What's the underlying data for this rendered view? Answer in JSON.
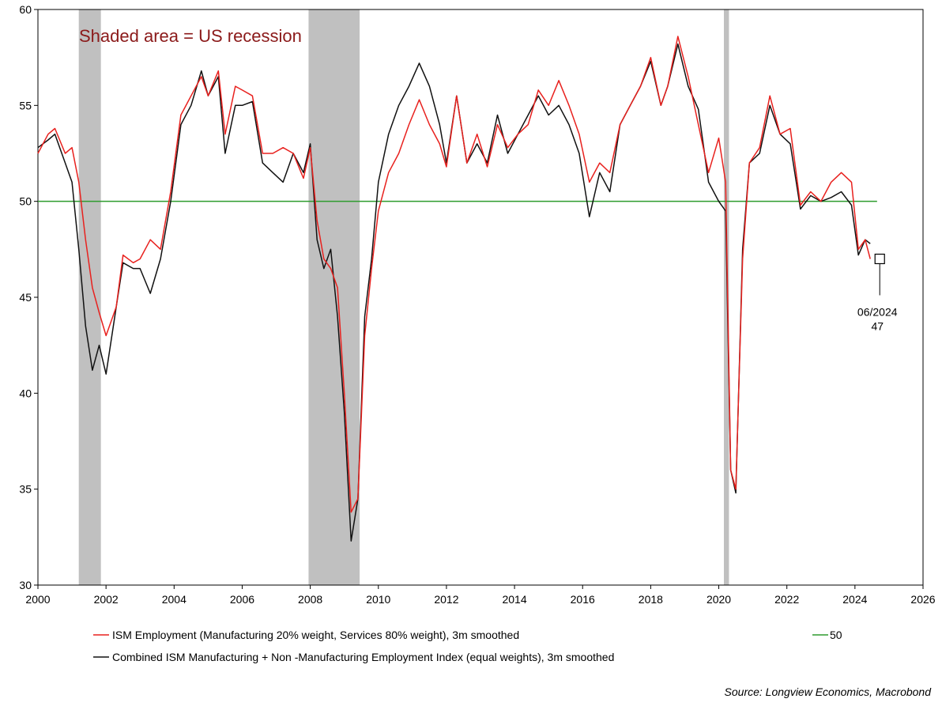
{
  "chart_data": {
    "type": "line",
    "title": "",
    "xlabel": "",
    "ylabel": "",
    "xlim": [
      2000,
      2026
    ],
    "ylim": [
      30,
      60
    ],
    "x_ticks": [
      "2000",
      "2002",
      "2004",
      "2006",
      "2008",
      "2010",
      "2012",
      "2014",
      "2016",
      "2018",
      "2020",
      "2022",
      "2024",
      "2026"
    ],
    "y_ticks": [
      "30",
      "35",
      "40",
      "45",
      "50",
      "55",
      "60"
    ],
    "grid": false,
    "legend_position": "bottom",
    "annotation": "Shaded area = US recession",
    "callout": {
      "date": "06/2024",
      "value": "47",
      "x": 2024.45,
      "y": 47
    },
    "source": "Source: Longview Economics, Macrobond",
    "recessions": [
      [
        2001.2,
        2001.85
      ],
      [
        2007.95,
        2009.45
      ],
      [
        2020.15,
        2020.3
      ]
    ],
    "reference_line": {
      "name": "50",
      "value": 50,
      "x_end": 2024.65,
      "color": "#2e9b2e"
    },
    "series": [
      {
        "name": "ISM Employment (Manufacturing 20% weight, Services 80% weight), 3m smoothed",
        "color": "#e8211e",
        "x": [
          2000.0,
          2000.3,
          2000.5,
          2000.8,
          2001.0,
          2001.2,
          2001.4,
          2001.6,
          2001.8,
          2002.0,
          2002.3,
          2002.5,
          2002.8,
          2003.0,
          2003.3,
          2003.6,
          2003.9,
          2004.2,
          2004.5,
          2004.8,
          2005.0,
          2005.3,
          2005.5,
          2005.8,
          2006.0,
          2006.3,
          2006.6,
          2006.9,
          2007.2,
          2007.5,
          2007.8,
          2008.0,
          2008.2,
          2008.4,
          2008.6,
          2008.8,
          2009.0,
          2009.2,
          2009.4,
          2009.6,
          2009.8,
          2010.0,
          2010.3,
          2010.6,
          2010.9,
          2011.2,
          2011.5,
          2011.8,
          2012.0,
          2012.3,
          2012.6,
          2012.9,
          2013.2,
          2013.5,
          2013.8,
          2014.1,
          2014.4,
          2014.7,
          2015.0,
          2015.3,
          2015.6,
          2015.9,
          2016.2,
          2016.5,
          2016.8,
          2017.1,
          2017.4,
          2017.7,
          2018.0,
          2018.3,
          2018.5,
          2018.8,
          2019.1,
          2019.4,
          2019.7,
          2020.0,
          2020.2,
          2020.35,
          2020.5,
          2020.7,
          2020.9,
          2021.2,
          2021.5,
          2021.8,
          2022.1,
          2022.4,
          2022.7,
          2023.0,
          2023.3,
          2023.6,
          2023.9,
          2024.1,
          2024.3,
          2024.45
        ],
        "y": [
          52.5,
          53.5,
          53.8,
          52.5,
          52.8,
          51.0,
          48.0,
          45.5,
          44.2,
          43.0,
          44.5,
          47.2,
          46.8,
          47.0,
          48.0,
          47.5,
          50.5,
          54.5,
          55.5,
          56.5,
          55.5,
          56.8,
          53.5,
          56.0,
          55.8,
          55.5,
          52.5,
          52.5,
          52.8,
          52.5,
          51.2,
          52.8,
          49.0,
          47.0,
          46.5,
          45.5,
          40.0,
          33.8,
          34.5,
          43.0,
          46.5,
          49.5,
          51.5,
          52.5,
          54.0,
          55.3,
          54.0,
          53.0,
          51.8,
          55.5,
          52.0,
          53.5,
          51.8,
          54.0,
          52.8,
          53.5,
          54.0,
          55.8,
          55.0,
          56.3,
          55.0,
          53.5,
          51.0,
          52.0,
          51.5,
          54.0,
          55.0,
          56.0,
          57.5,
          55.0,
          56.0,
          58.6,
          56.5,
          54.0,
          51.5,
          53.3,
          51.0,
          36.0,
          35.0,
          47.0,
          52.0,
          52.8,
          55.5,
          53.5,
          53.8,
          49.8,
          50.5,
          50.0,
          51.0,
          51.5,
          51.0,
          47.5,
          48.0,
          47.0
        ]
      },
      {
        "name": "Combined ISM Manufacturing + Non -Manufacturing Employment Index (equal weights), 3m smoothed",
        "color": "#111111",
        "x": [
          2000.0,
          2000.3,
          2000.5,
          2000.8,
          2001.0,
          2001.2,
          2001.4,
          2001.6,
          2001.8,
          2002.0,
          2002.3,
          2002.5,
          2002.8,
          2003.0,
          2003.3,
          2003.6,
          2003.9,
          2004.2,
          2004.5,
          2004.8,
          2005.0,
          2005.3,
          2005.5,
          2005.8,
          2006.0,
          2006.3,
          2006.6,
          2006.9,
          2007.2,
          2007.5,
          2007.8,
          2008.0,
          2008.2,
          2008.4,
          2008.6,
          2008.8,
          2009.0,
          2009.2,
          2009.4,
          2009.6,
          2009.8,
          2010.0,
          2010.3,
          2010.6,
          2010.9,
          2011.2,
          2011.5,
          2011.8,
          2012.0,
          2012.3,
          2012.6,
          2012.9,
          2013.2,
          2013.5,
          2013.8,
          2014.1,
          2014.4,
          2014.7,
          2015.0,
          2015.3,
          2015.6,
          2015.9,
          2016.2,
          2016.5,
          2016.8,
          2017.1,
          2017.4,
          2017.7,
          2018.0,
          2018.3,
          2018.5,
          2018.8,
          2019.1,
          2019.4,
          2019.7,
          2020.0,
          2020.2,
          2020.35,
          2020.5,
          2020.7,
          2020.9,
          2021.2,
          2021.5,
          2021.8,
          2022.1,
          2022.4,
          2022.7,
          2023.0,
          2023.3,
          2023.6,
          2023.9,
          2024.1,
          2024.3,
          2024.45
        ],
        "y": [
          52.8,
          53.2,
          53.5,
          52.0,
          51.0,
          47.5,
          43.5,
          41.2,
          42.5,
          41.0,
          44.5,
          46.8,
          46.5,
          46.5,
          45.2,
          47.0,
          50.0,
          54.0,
          55.0,
          56.8,
          55.5,
          56.5,
          52.5,
          55.0,
          55.0,
          55.2,
          52.0,
          51.5,
          51.0,
          52.5,
          51.5,
          53.0,
          48.0,
          46.5,
          47.5,
          44.0,
          39.0,
          32.3,
          34.5,
          44.0,
          47.0,
          51.0,
          53.5,
          55.0,
          56.0,
          57.2,
          56.0,
          54.0,
          52.0,
          55.5,
          52.0,
          53.0,
          52.0,
          54.5,
          52.5,
          53.5,
          54.5,
          55.5,
          54.5,
          55.0,
          54.0,
          52.5,
          49.2,
          51.5,
          50.5,
          54.0,
          55.0,
          56.0,
          57.3,
          55.0,
          56.0,
          58.2,
          56.0,
          54.8,
          51.0,
          50.0,
          49.5,
          36.0,
          34.8,
          47.5,
          52.0,
          52.5,
          55.0,
          53.5,
          53.0,
          49.6,
          50.3,
          50.0,
          50.2,
          50.5,
          49.8,
          47.2,
          48.0,
          47.8
        ]
      }
    ]
  }
}
